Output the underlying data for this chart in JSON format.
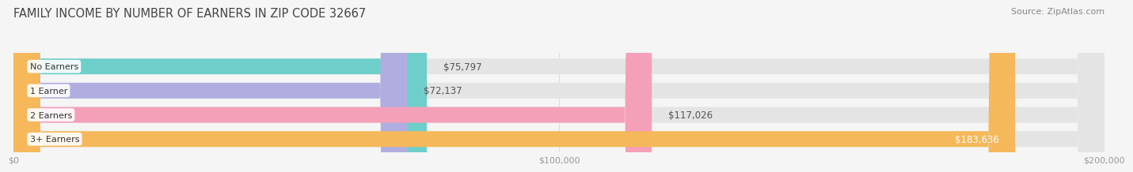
{
  "title": "FAMILY INCOME BY NUMBER OF EARNERS IN ZIP CODE 32667",
  "source": "Source: ZipAtlas.com",
  "categories": [
    "No Earners",
    "1 Earner",
    "2 Earners",
    "3+ Earners"
  ],
  "values": [
    75797,
    72137,
    117026,
    183636
  ],
  "bar_colors": [
    "#6ecfca",
    "#b0aee0",
    "#f4a0b8",
    "#f5b85a"
  ],
  "bar_labels": [
    "$75,797",
    "$72,137",
    "$117,026",
    "$183,636"
  ],
  "xlim": [
    0,
    200000
  ],
  "xtick_values": [
    0,
    100000,
    200000
  ],
  "xtick_labels": [
    "$0",
    "$100,000",
    "$200,000"
  ],
  "background_color": "#f5f5f5",
  "bar_background_color": "#e4e4e4",
  "title_fontsize": 10.5,
  "source_fontsize": 8,
  "label_fontsize": 8.5,
  "category_fontsize": 8
}
